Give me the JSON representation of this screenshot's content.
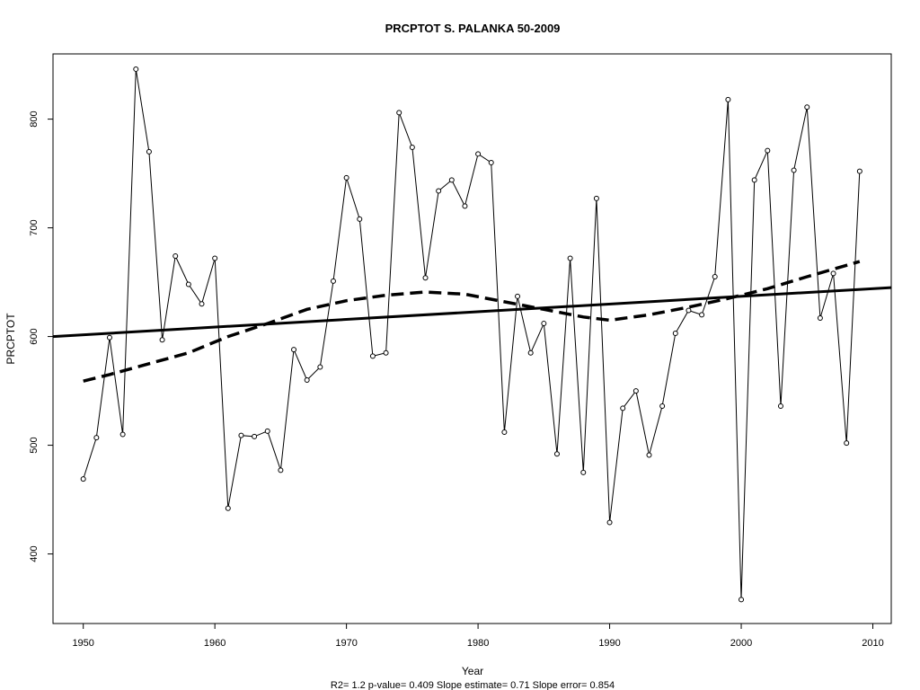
{
  "chart_data": {
    "type": "line",
    "title": "PRCPTOT   S. PALANKA 50-2009",
    "xlabel": "Year",
    "ylabel": "PRCPTOT",
    "subtitle": "R2= 1.2  p-value= 0.409  Slope estimate= 0.71  Slope error= 0.854",
    "xlim": [
      1947.7,
      2011.4
    ],
    "ylim": [
      336,
      860
    ],
    "xticks": [
      1950,
      1960,
      1970,
      1980,
      1990,
      2000,
      2010
    ],
    "yticks": [
      400,
      500,
      600,
      700,
      800
    ],
    "grid": false,
    "series": [
      {
        "style": "solid-thin-with-points",
        "x": [
          1950,
          1951,
          1952,
          1953,
          1954,
          1955,
          1956,
          1957,
          1958,
          1959,
          1960,
          1961,
          1962,
          1963,
          1964,
          1965,
          1966,
          1967,
          1968,
          1969,
          1970,
          1971,
          1972,
          1973,
          1974,
          1975,
          1976,
          1977,
          1978,
          1979,
          1980,
          1981,
          1982,
          1983,
          1984,
          1985,
          1986,
          1987,
          1988,
          1989,
          1990,
          1991,
          1992,
          1993,
          1994,
          1995,
          1996,
          1997,
          1998,
          1999,
          2000,
          2001,
          2002,
          2003,
          2004,
          2005,
          2006,
          2007,
          2008,
          2009
        ],
        "values": [
          469,
          507,
          599,
          510,
          846,
          770,
          597,
          674,
          648,
          630,
          672,
          442,
          509,
          508,
          513,
          477,
          588,
          560,
          572,
          651,
          746,
          708,
          582,
          585,
          806,
          774,
          654,
          734,
          744,
          720,
          768,
          760,
          512,
          637,
          585,
          612,
          492,
          672,
          475,
          727,
          429,
          534,
          550,
          491,
          536,
          603,
          624,
          620,
          655,
          818,
          358,
          744,
          771,
          536,
          753,
          811,
          617,
          658,
          502,
          752
        ]
      },
      {
        "style": "solid-thick-trend",
        "x": [
          1947.7,
          2011.4
        ],
        "values": [
          600,
          645
        ]
      },
      {
        "style": "dashed-thick-smooth",
        "x": [
          1950,
          1952,
          1955,
          1958,
          1961,
          1964,
          1967,
          1970,
          1973,
          1976,
          1979,
          1982,
          1985,
          1988,
          1990,
          1993,
          1996,
          1999,
          2002,
          2005,
          2009
        ],
        "values": [
          559,
          565,
          575,
          585,
          600,
          612,
          625,
          633,
          638,
          641,
          639,
          632,
          625,
          618,
          615,
          620,
          627,
          635,
          644,
          655,
          669
        ]
      }
    ]
  }
}
